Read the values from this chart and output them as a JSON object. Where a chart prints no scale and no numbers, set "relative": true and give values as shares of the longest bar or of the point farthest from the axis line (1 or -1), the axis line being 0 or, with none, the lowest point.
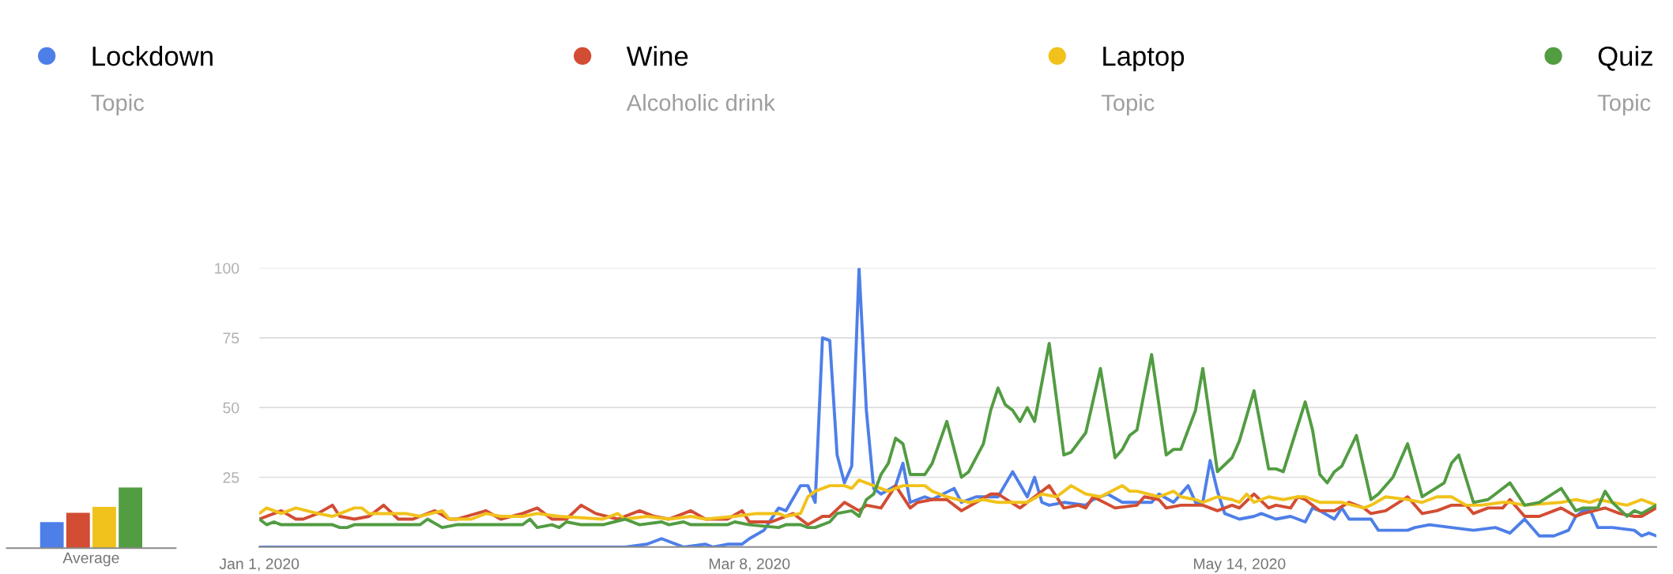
{
  "chart_data": [
    {
      "type": "bar",
      "relative": true,
      "categories": [
        "Average"
      ],
      "tick_labels": "x",
      "series": [
        {
          "color": "#4e7fe8",
          "values": [
            0.43
          ]
        },
        {
          "color": "#d24d33",
          "values": [
            0.58
          ]
        },
        {
          "color": "#f1c21b",
          "values": [
            0.68
          ]
        },
        {
          "color": "#529c42",
          "values": [
            1.0
          ]
        }
      ]
    },
    {
      "type": "line",
      "xlim": [
        "2020-01-01",
        "2020-07-10"
      ],
      "ylim": [
        0,
        100
      ],
      "xticks": [
        {
          "value": "2020-01-01",
          "label": "Jan 1, 2020"
        },
        {
          "value": "2020-03-08",
          "label": "Mar 8, 2020"
        },
        {
          "value": "2020-05-14",
          "label": "May 14, 2020"
        }
      ],
      "yticks": [
        25,
        50,
        75,
        100
      ],
      "grid": "y",
      "legend": "top",
      "marker": "none",
      "line_style": "solid",
      "annotations": [
        "Topic",
        "Alcoholic drink",
        "Topic",
        "Topic"
      ],
      "series": [
        {
          "name": "Lockdown",
          "color": "#4e7fe8",
          "x": [
            "2020-01-01",
            "2020-02-20",
            "2020-02-23",
            "2020-02-25",
            "2020-02-28",
            "2020-03-02",
            "2020-03-03",
            "2020-03-05",
            "2020-03-07",
            "2020-03-08",
            "2020-03-10",
            "2020-03-12",
            "2020-03-13",
            "2020-03-15",
            "2020-03-16",
            "2020-03-17",
            "2020-03-18",
            "2020-03-19",
            "2020-03-20",
            "2020-03-21",
            "2020-03-22",
            "2020-03-23",
            "2020-03-24",
            "2020-03-25",
            "2020-03-26",
            "2020-03-28",
            "2020-03-29",
            "2020-03-30",
            "2020-04-01",
            "2020-04-02",
            "2020-04-05",
            "2020-04-06",
            "2020-04-08",
            "2020-04-11",
            "2020-04-13",
            "2020-04-15",
            "2020-04-16",
            "2020-04-17",
            "2020-04-18",
            "2020-04-20",
            "2020-04-23",
            "2020-04-24",
            "2020-04-26",
            "2020-04-28",
            "2020-04-30",
            "2020-05-02",
            "2020-05-03",
            "2020-05-05",
            "2020-05-07",
            "2020-05-08",
            "2020-05-09",
            "2020-05-10",
            "2020-05-11",
            "2020-05-12",
            "2020-05-14",
            "2020-05-16",
            "2020-05-17",
            "2020-05-19",
            "2020-05-21",
            "2020-05-23",
            "2020-05-24",
            "2020-05-25",
            "2020-05-27",
            "2020-05-28",
            "2020-05-29",
            "2020-06-01",
            "2020-06-02",
            "2020-06-06",
            "2020-06-07",
            "2020-06-09",
            "2020-06-12",
            "2020-06-15",
            "2020-06-18",
            "2020-06-20",
            "2020-06-22",
            "2020-06-24",
            "2020-06-26",
            "2020-06-28",
            "2020-06-29",
            "2020-06-30",
            "2020-07-01",
            "2020-07-02",
            "2020-07-04",
            "2020-07-07",
            "2020-07-08",
            "2020-07-09",
            "2020-07-10"
          ],
          "values": [
            0,
            0,
            1,
            3,
            0,
            1,
            0,
            1,
            1,
            3,
            6,
            14,
            13,
            22,
            22,
            16,
            75,
            74,
            33,
            23,
            29,
            100,
            49,
            21,
            19,
            22,
            30,
            16,
            18,
            17,
            21,
            16,
            18,
            18,
            27,
            18,
            25,
            16,
            15,
            16,
            15,
            17,
            19,
            16,
            16,
            16,
            19,
            16,
            22,
            16,
            16,
            31,
            20,
            12,
            10,
            11,
            12,
            10,
            11,
            9,
            14,
            13,
            10,
            14,
            10,
            10,
            6,
            6,
            7,
            8,
            7,
            6,
            7,
            5,
            10,
            4,
            4,
            6,
            11,
            13,
            13,
            7,
            7,
            6,
            4,
            5,
            4
          ]
        },
        {
          "name": "Wine",
          "color": "#d24d33",
          "x": [
            "2020-01-01",
            "2020-01-04",
            "2020-01-06",
            "2020-01-07",
            "2020-01-09",
            "2020-01-11",
            "2020-01-12",
            "2020-01-14",
            "2020-01-16",
            "2020-01-18",
            "2020-01-20",
            "2020-01-22",
            "2020-01-25",
            "2020-01-27",
            "2020-01-28",
            "2020-02-01",
            "2020-02-03",
            "2020-02-06",
            "2020-02-08",
            "2020-02-10",
            "2020-02-12",
            "2020-02-14",
            "2020-02-16",
            "2020-02-19",
            "2020-02-22",
            "2020-02-24",
            "2020-02-26",
            "2020-02-29",
            "2020-03-02",
            "2020-03-05",
            "2020-03-07",
            "2020-03-08",
            "2020-03-11",
            "2020-03-14",
            "2020-03-16",
            "2020-03-18",
            "2020-03-19",
            "2020-03-21",
            "2020-03-23",
            "2020-03-24",
            "2020-03-26",
            "2020-03-28",
            "2020-03-30",
            "2020-03-31",
            "2020-04-02",
            "2020-04-04",
            "2020-04-06",
            "2020-04-08",
            "2020-04-10",
            "2020-04-11",
            "2020-04-14",
            "2020-04-16",
            "2020-04-18",
            "2020-04-20",
            "2020-04-22",
            "2020-04-23",
            "2020-04-24",
            "2020-04-27",
            "2020-04-30",
            "2020-05-01",
            "2020-05-03",
            "2020-05-04",
            "2020-05-06",
            "2020-05-09",
            "2020-05-11",
            "2020-05-13",
            "2020-05-14",
            "2020-05-16",
            "2020-05-18",
            "2020-05-19",
            "2020-05-21",
            "2020-05-22",
            "2020-05-23",
            "2020-05-25",
            "2020-05-27",
            "2020-05-29",
            "2020-05-31",
            "2020-06-01",
            "2020-06-03",
            "2020-06-06",
            "2020-06-08",
            "2020-06-10",
            "2020-06-12",
            "2020-06-14",
            "2020-06-15",
            "2020-06-17",
            "2020-06-19",
            "2020-06-20",
            "2020-06-22",
            "2020-06-24",
            "2020-06-27",
            "2020-06-29",
            "2020-06-30",
            "2020-07-03",
            "2020-07-05",
            "2020-07-07",
            "2020-07-08",
            "2020-07-10"
          ],
          "values": [
            10,
            13,
            10,
            10,
            12,
            15,
            11,
            10,
            11,
            15,
            10,
            10,
            13,
            10,
            10,
            13,
            10,
            12,
            14,
            10,
            10,
            15,
            12,
            10,
            13,
            11,
            10,
            13,
            10,
            10,
            13,
            9,
            9,
            12,
            8,
            11,
            11,
            16,
            13,
            15,
            14,
            22,
            14,
            16,
            17,
            17,
            13,
            16,
            19,
            19,
            14,
            18,
            22,
            14,
            15,
            14,
            18,
            14,
            15,
            18,
            17,
            14,
            15,
            15,
            13,
            15,
            14,
            19,
            14,
            15,
            14,
            18,
            17,
            13,
            13,
            16,
            14,
            12,
            13,
            18,
            12,
            13,
            15,
            15,
            12,
            14,
            14,
            17,
            11,
            11,
            14,
            11,
            12,
            14,
            12,
            11,
            11,
            14
          ]
        },
        {
          "name": "Laptop",
          "color": "#f1c21b",
          "x": [
            "2020-01-01",
            "2020-01-02",
            "2020-01-04",
            "2020-01-06",
            "2020-01-09",
            "2020-01-11",
            "2020-01-14",
            "2020-01-15",
            "2020-01-16",
            "2020-01-21",
            "2020-01-23",
            "2020-01-26",
            "2020-01-27",
            "2020-01-30",
            "2020-02-01",
            "2020-02-03",
            "2020-02-06",
            "2020-02-08",
            "2020-02-11",
            "2020-02-17",
            "2020-02-19",
            "2020-02-20",
            "2020-02-23",
            "2020-02-26",
            "2020-02-29",
            "2020-03-02",
            "2020-03-06",
            "2020-03-09",
            "2020-03-12",
            "2020-03-13",
            "2020-03-15",
            "2020-03-16",
            "2020-03-17",
            "2020-03-19",
            "2020-03-21",
            "2020-03-22",
            "2020-03-23",
            "2020-03-24",
            "2020-03-26",
            "2020-03-27",
            "2020-03-29",
            "2020-04-01",
            "2020-04-02",
            "2020-04-04",
            "2020-04-07",
            "2020-04-09",
            "2020-04-11",
            "2020-04-13",
            "2020-04-15",
            "2020-04-17",
            "2020-04-19",
            "2020-04-21",
            "2020-04-23",
            "2020-04-25",
            "2020-04-28",
            "2020-04-29",
            "2020-04-30",
            "2020-05-03",
            "2020-05-05",
            "2020-05-06",
            "2020-05-08",
            "2020-05-09",
            "2020-05-11",
            "2020-05-13",
            "2020-05-14",
            "2020-05-15",
            "2020-05-16",
            "2020-05-18",
            "2020-05-20",
            "2020-05-22",
            "2020-05-23",
            "2020-05-25",
            "2020-05-28",
            "2020-05-31",
            "2020-06-01",
            "2020-06-03",
            "2020-06-06",
            "2020-06-08",
            "2020-06-10",
            "2020-06-12",
            "2020-06-14",
            "2020-06-16",
            "2020-06-19",
            "2020-06-20",
            "2020-06-22",
            "2020-06-27",
            "2020-06-29",
            "2020-07-01",
            "2020-07-02",
            "2020-07-06",
            "2020-07-08",
            "2020-07-10"
          ],
          "values": [
            12,
            14,
            12,
            14,
            12,
            11,
            14,
            14,
            12,
            12,
            11,
            13,
            10,
            10,
            12,
            11,
            11,
            12,
            11,
            10,
            12,
            10,
            11,
            10,
            11,
            10,
            11,
            12,
            12,
            11,
            12,
            18,
            20,
            22,
            22,
            21,
            24,
            23,
            21,
            20,
            22,
            22,
            20,
            18,
            16,
            17,
            16,
            16,
            16,
            19,
            18,
            22,
            19,
            18,
            22,
            20,
            20,
            18,
            20,
            18,
            17,
            16,
            18,
            17,
            16,
            19,
            16,
            18,
            17,
            18,
            18,
            16,
            16,
            14,
            15,
            18,
            17,
            16,
            18,
            18,
            15,
            15,
            16,
            16,
            15,
            16,
            17,
            16,
            17,
            15,
            17,
            15
          ]
        },
        {
          "name": "Quiz",
          "color": "#529c42",
          "x": [
            "2020-01-01",
            "2020-01-02",
            "2020-01-03",
            "2020-01-04",
            "2020-01-11",
            "2020-01-12",
            "2020-01-13",
            "2020-01-14",
            "2020-01-23",
            "2020-01-24",
            "2020-01-26",
            "2020-01-28",
            "2020-02-06",
            "2020-02-07",
            "2020-02-08",
            "2020-02-10",
            "2020-02-11",
            "2020-02-12",
            "2020-02-14",
            "2020-02-17",
            "2020-02-20",
            "2020-02-22",
            "2020-02-25",
            "2020-02-26",
            "2020-02-28",
            "2020-02-29",
            "2020-03-05",
            "2020-03-06",
            "2020-03-08",
            "2020-03-12",
            "2020-03-13",
            "2020-03-15",
            "2020-03-16",
            "2020-03-17",
            "2020-03-19",
            "2020-03-20",
            "2020-03-22",
            "2020-03-23",
            "2020-03-24",
            "2020-03-25",
            "2020-03-26",
            "2020-03-27",
            "2020-03-28",
            "2020-03-29",
            "2020-03-30",
            "2020-04-01",
            "2020-04-02",
            "2020-04-04",
            "2020-04-06",
            "2020-04-07",
            "2020-04-09",
            "2020-04-10",
            "2020-04-11",
            "2020-04-12",
            "2020-04-13",
            "2020-04-14",
            "2020-04-15",
            "2020-04-16",
            "2020-04-18",
            "2020-04-20",
            "2020-04-21",
            "2020-04-23",
            "2020-04-25",
            "2020-04-27",
            "2020-04-28",
            "2020-04-29",
            "2020-04-30",
            "2020-05-02",
            "2020-05-04",
            "2020-05-05",
            "2020-05-06",
            "2020-05-08",
            "2020-05-09",
            "2020-05-11",
            "2020-05-13",
            "2020-05-14",
            "2020-05-16",
            "2020-05-18",
            "2020-05-19",
            "2020-05-20",
            "2020-05-23",
            "2020-05-24",
            "2020-05-25",
            "2020-05-26",
            "2020-05-27",
            "2020-05-28",
            "2020-05-30",
            "2020-06-01",
            "2020-06-02",
            "2020-06-04",
            "2020-06-06",
            "2020-06-08",
            "2020-06-11",
            "2020-06-12",
            "2020-06-13",
            "2020-06-15",
            "2020-06-17",
            "2020-06-18",
            "2020-06-20",
            "2020-06-22",
            "2020-06-24",
            "2020-06-27",
            "2020-06-29",
            "2020-06-30",
            "2020-07-02",
            "2020-07-03",
            "2020-07-04",
            "2020-07-06",
            "2020-07-07",
            "2020-07-08",
            "2020-07-10"
          ],
          "values": [
            10,
            8,
            9,
            8,
            8,
            7,
            7,
            8,
            8,
            10,
            7,
            8,
            8,
            10,
            7,
            8,
            7,
            9,
            8,
            8,
            10,
            8,
            9,
            8,
            9,
            8,
            8,
            9,
            8,
            7,
            8,
            8,
            7,
            7,
            9,
            12,
            13,
            11,
            17,
            19,
            26,
            30,
            39,
            37,
            26,
            26,
            30,
            45,
            25,
            27,
            37,
            49,
            57,
            51,
            49,
            45,
            50,
            45,
            73,
            33,
            34,
            41,
            64,
            32,
            35,
            40,
            42,
            69,
            33,
            35,
            35,
            49,
            64,
            27,
            32,
            38,
            56,
            28,
            28,
            27,
            52,
            42,
            26,
            23,
            27,
            29,
            40,
            17,
            19,
            25,
            37,
            18,
            23,
            30,
            33,
            16,
            17,
            19,
            23,
            15,
            16,
            21,
            13,
            14,
            14,
            20,
            16,
            11,
            13,
            12,
            15
          ]
        }
      ]
    }
  ]
}
